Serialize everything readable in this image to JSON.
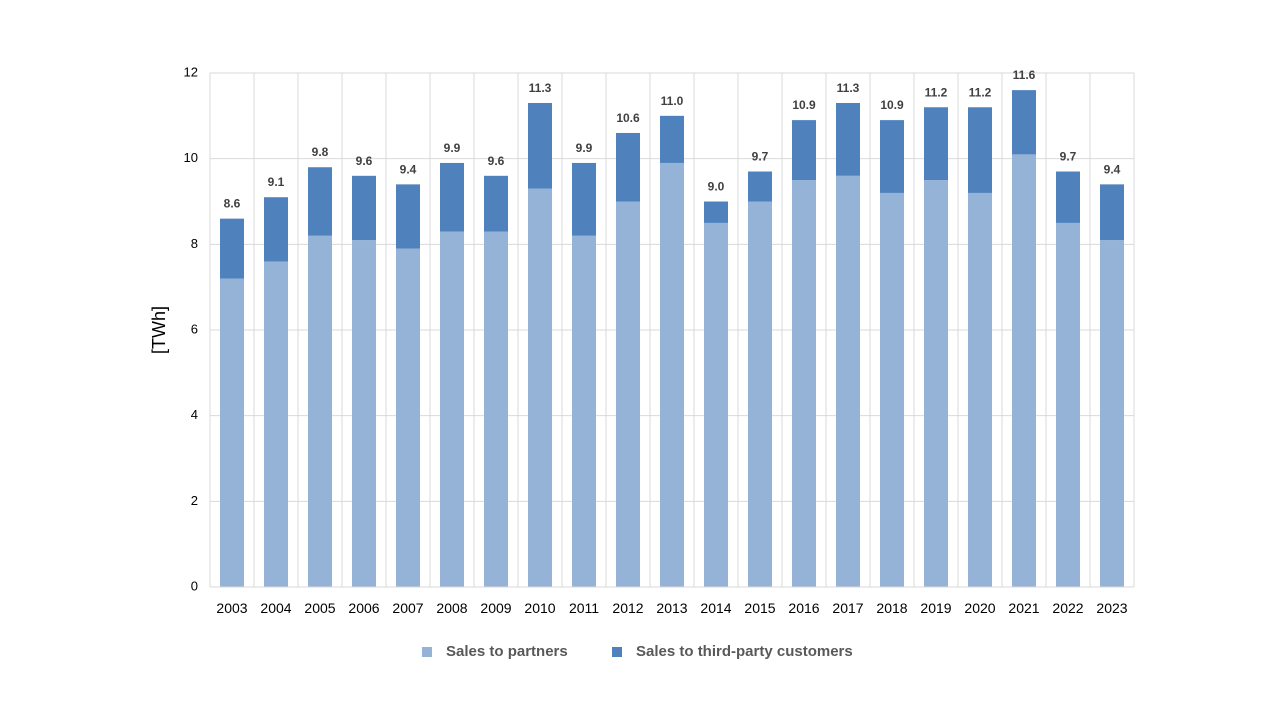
{
  "chart_data": {
    "type": "bar",
    "stacked": true,
    "title": "",
    "xlabel": "",
    "ylabel": "[TWh]",
    "ylim": [
      0,
      12
    ],
    "yticks": [
      0,
      2,
      4,
      6,
      8,
      10,
      12
    ],
    "grid": true,
    "legend_position": "bottom",
    "categories": [
      "2003",
      "2004",
      "2005",
      "2006",
      "2007",
      "2008",
      "2009",
      "2010",
      "2011",
      "2012",
      "2013",
      "2014",
      "2015",
      "2016",
      "2017",
      "2018",
      "2019",
      "2020",
      "2021",
      "2022",
      "2023"
    ],
    "series": [
      {
        "name": "Sales to partners",
        "color": "#95b3d7",
        "values": [
          7.2,
          7.6,
          8.2,
          8.1,
          7.9,
          8.3,
          8.3,
          9.3,
          8.2,
          9.0,
          9.9,
          8.5,
          9.0,
          9.5,
          9.6,
          9.2,
          9.5,
          9.2,
          10.1,
          8.5,
          8.1
        ]
      },
      {
        "name": "Sales to third-party customers",
        "color": "#4f81bd",
        "values": [
          1.4,
          1.5,
          1.6,
          1.5,
          1.5,
          1.6,
          1.3,
          2.0,
          1.7,
          1.6,
          1.1,
          0.5,
          0.7,
          1.4,
          1.7,
          1.7,
          1.7,
          2.0,
          1.5,
          1.2,
          1.3
        ]
      }
    ],
    "totals_labels": [
      "8.6",
      "9.1",
      "9.8",
      "9.6",
      "9.4",
      "9.9",
      "9.6",
      "11.3",
      "9.9",
      "10.6",
      "11.0",
      "9.0",
      "9.7",
      "10.9",
      "11.3",
      "10.9",
      "11.2",
      "11.2",
      "11.6",
      "9.7",
      "9.4"
    ]
  }
}
